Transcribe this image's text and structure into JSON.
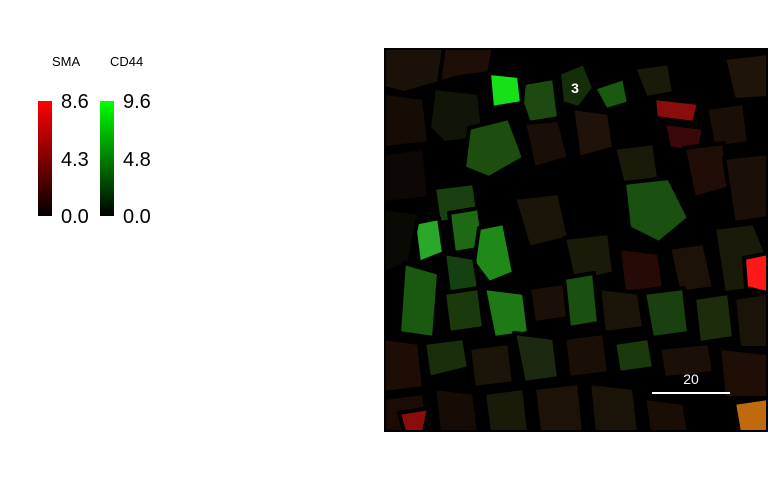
{
  "legend": {
    "channels": [
      {
        "name": "SMA",
        "color": "#ff0000",
        "ticks": [
          "8.6",
          "4.3",
          "0.0"
        ]
      },
      {
        "name": "CD44",
        "color": "#00ff00",
        "ticks": [
          "9.6",
          "4.8",
          "0.0"
        ]
      }
    ]
  },
  "image": {
    "cluster_label": "3",
    "scale_bar_label": "20",
    "scale_bar_color": "#ffffff"
  }
}
